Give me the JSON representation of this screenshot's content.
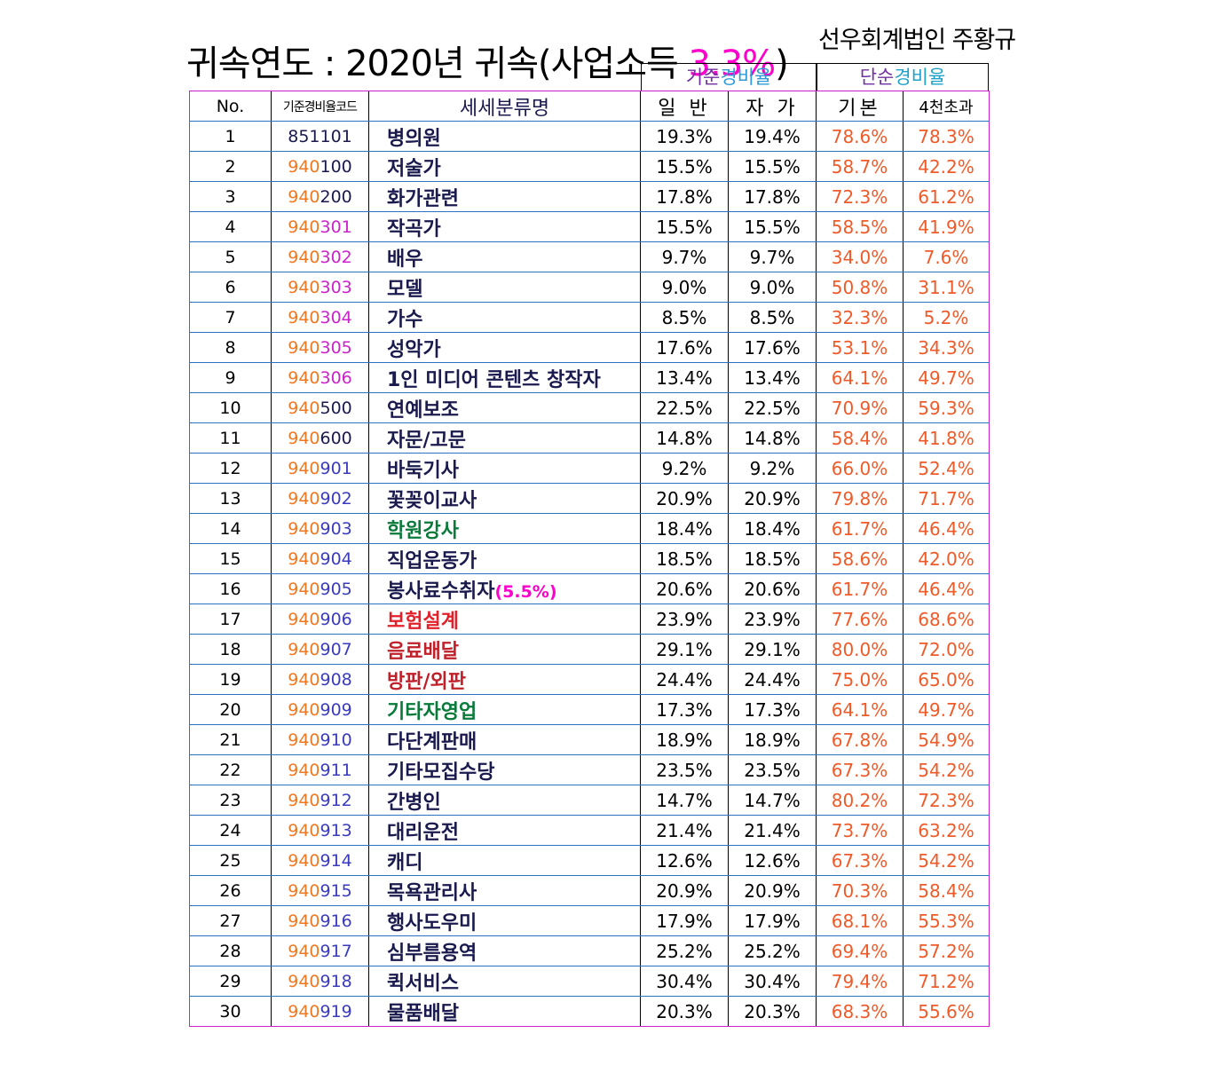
{
  "title": {
    "main": "귀속연도 : 2020년 귀속(사업소득 ",
    "pct": "3.3%",
    "close": ")"
  },
  "author": "선우회계법인 주황규",
  "groups": {
    "standard": {
      "part1": "기준",
      "part2": "경비율"
    },
    "simple": {
      "part1": "단순",
      "part2": "경비율"
    }
  },
  "headers": {
    "no": "No.",
    "code": "기준경비율코드",
    "name": "세세분류명",
    "general": "일 반",
    "self": "자 가",
    "basic": "기본",
    "over": "4천초과"
  },
  "colors": {
    "code_prefix": "#f07820",
    "simple_rate": "#f05a28",
    "magenta": "#ff00cc",
    "border_magenta": "#cc22cc",
    "border_blue": "#2a73c2"
  },
  "rows": [
    {
      "no": "1",
      "code_a": "",
      "code_b": "851101",
      "name": "병의원",
      "gen": "19.3%",
      "self": "19.4%",
      "basic": "78.6%",
      "over": "78.3%"
    },
    {
      "no": "2",
      "code_a": "940",
      "code_b": "100",
      "name": "저술가",
      "gen": "15.5%",
      "self": "15.5%",
      "basic": "58.7%",
      "over": "42.2%"
    },
    {
      "no": "3",
      "code_a": "940",
      "code_b": "200",
      "name": "화가관련",
      "gen": "17.8%",
      "self": "17.8%",
      "basic": "72.3%",
      "over": "61.2%"
    },
    {
      "no": "4",
      "code_a": "940",
      "code_b": "301",
      "name": "작곡가",
      "gen": "15.5%",
      "self": "15.5%",
      "basic": "58.5%",
      "over": "41.9%"
    },
    {
      "no": "5",
      "code_a": "940",
      "code_b": "302",
      "name": "배우",
      "gen": "9.7%",
      "self": "9.7%",
      "basic": "34.0%",
      "over": "7.6%"
    },
    {
      "no": "6",
      "code_a": "940",
      "code_b": "303",
      "name": "모델",
      "gen": "9.0%",
      "self": "9.0%",
      "basic": "50.8%",
      "over": "31.1%"
    },
    {
      "no": "7",
      "code_a": "940",
      "code_b": "304",
      "name": "가수",
      "gen": "8.5%",
      "self": "8.5%",
      "basic": "32.3%",
      "over": "5.2%"
    },
    {
      "no": "8",
      "code_a": "940",
      "code_b": "305",
      "name": "성악가",
      "gen": "17.6%",
      "self": "17.6%",
      "basic": "53.1%",
      "over": "34.3%"
    },
    {
      "no": "9",
      "code_a": "940",
      "code_b": "306",
      "name": "1인 미디어 콘텐츠 창작자",
      "gen": "13.4%",
      "self": "13.4%",
      "basic": "64.1%",
      "over": "49.7%"
    },
    {
      "no": "10",
      "code_a": "940",
      "code_b": "500",
      "name": "연예보조",
      "gen": "22.5%",
      "self": "22.5%",
      "basic": "70.9%",
      "over": "59.3%"
    },
    {
      "no": "11",
      "code_a": "940",
      "code_b": "600",
      "name": "자문/고문",
      "gen": "14.8%",
      "self": "14.8%",
      "basic": "58.4%",
      "over": "41.8%"
    },
    {
      "no": "12",
      "code_a": "940",
      "code_b": "901",
      "name": "바둑기사",
      "gen": "9.2%",
      "self": "9.2%",
      "basic": "66.0%",
      "over": "52.4%"
    },
    {
      "no": "13",
      "code_a": "940",
      "code_b": "902",
      "name": "꽃꽂이교사",
      "gen": "20.9%",
      "self": "20.9%",
      "basic": "79.8%",
      "over": "71.7%"
    },
    {
      "no": "14",
      "code_a": "940",
      "code_b": "903",
      "name": "학원강사",
      "gen": "18.4%",
      "self": "18.4%",
      "basic": "61.7%",
      "over": "46.4%"
    },
    {
      "no": "15",
      "code_a": "940",
      "code_b": "904",
      "name": "직업운동가",
      "gen": "18.5%",
      "self": "18.5%",
      "basic": "58.6%",
      "over": "42.0%"
    },
    {
      "no": "16",
      "code_a": "940",
      "code_b": "905",
      "name": "봉사료수취자",
      "name_sub": "(5.5%)",
      "gen": "20.6%",
      "self": "20.6%",
      "basic": "61.7%",
      "over": "46.4%"
    },
    {
      "no": "17",
      "code_a": "940",
      "code_b": "906",
      "name": "보험설계",
      "gen": "23.9%",
      "self": "23.9%",
      "basic": "77.6%",
      "over": "68.6%"
    },
    {
      "no": "18",
      "code_a": "940",
      "code_b": "907",
      "name": "음료배달",
      "gen": "29.1%",
      "self": "29.1%",
      "basic": "80.0%",
      "over": "72.0%"
    },
    {
      "no": "19",
      "code_a": "940",
      "code_b": "908",
      "name": "방판/외판",
      "gen": "24.4%",
      "self": "24.4%",
      "basic": "75.0%",
      "over": "65.0%"
    },
    {
      "no": "20",
      "code_a": "940",
      "code_b": "909",
      "name": "기타자영업",
      "gen": "17.3%",
      "self": "17.3%",
      "basic": "64.1%",
      "over": "49.7%"
    },
    {
      "no": "21",
      "code_a": "940",
      "code_b": "910",
      "name": "다단계판매",
      "gen": "18.9%",
      "self": "18.9%",
      "basic": "67.8%",
      "over": "54.9%"
    },
    {
      "no": "22",
      "code_a": "940",
      "code_b": "911",
      "name": "기타모집수당",
      "gen": "23.5%",
      "self": "23.5%",
      "basic": "67.3%",
      "over": "54.2%"
    },
    {
      "no": "23",
      "code_a": "940",
      "code_b": "912",
      "name": "간병인",
      "gen": "14.7%",
      "self": "14.7%",
      "basic": "80.2%",
      "over": "72.3%"
    },
    {
      "no": "24",
      "code_a": "940",
      "code_b": "913",
      "name": "대리운전",
      "gen": "21.4%",
      "self": "21.4%",
      "basic": "73.7%",
      "over": "63.2%"
    },
    {
      "no": "25",
      "code_a": "940",
      "code_b": "914",
      "name": "캐디",
      "gen": "12.6%",
      "self": "12.6%",
      "basic": "67.3%",
      "over": "54.2%"
    },
    {
      "no": "26",
      "code_a": "940",
      "code_b": "915",
      "name": "목욕관리사",
      "gen": "20.9%",
      "self": "20.9%",
      "basic": "70.3%",
      "over": "58.4%"
    },
    {
      "no": "27",
      "code_a": "940",
      "code_b": "916",
      "name": "행사도우미",
      "gen": "17.9%",
      "self": "17.9%",
      "basic": "68.1%",
      "over": "55.3%"
    },
    {
      "no": "28",
      "code_a": "940",
      "code_b": "917",
      "name": "심부름용역",
      "gen": "25.2%",
      "self": "25.2%",
      "basic": "69.4%",
      "over": "57.2%"
    },
    {
      "no": "29",
      "code_a": "940",
      "code_b": "918",
      "name": "퀵서비스",
      "gen": "30.4%",
      "self": "30.4%",
      "basic": "79.4%",
      "over": "71.2%"
    },
    {
      "no": "30",
      "code_a": "940",
      "code_b": "919",
      "name": "물품배달",
      "gen": "20.3%",
      "self": "20.3%",
      "basic": "68.3%",
      "over": "55.6%"
    }
  ]
}
